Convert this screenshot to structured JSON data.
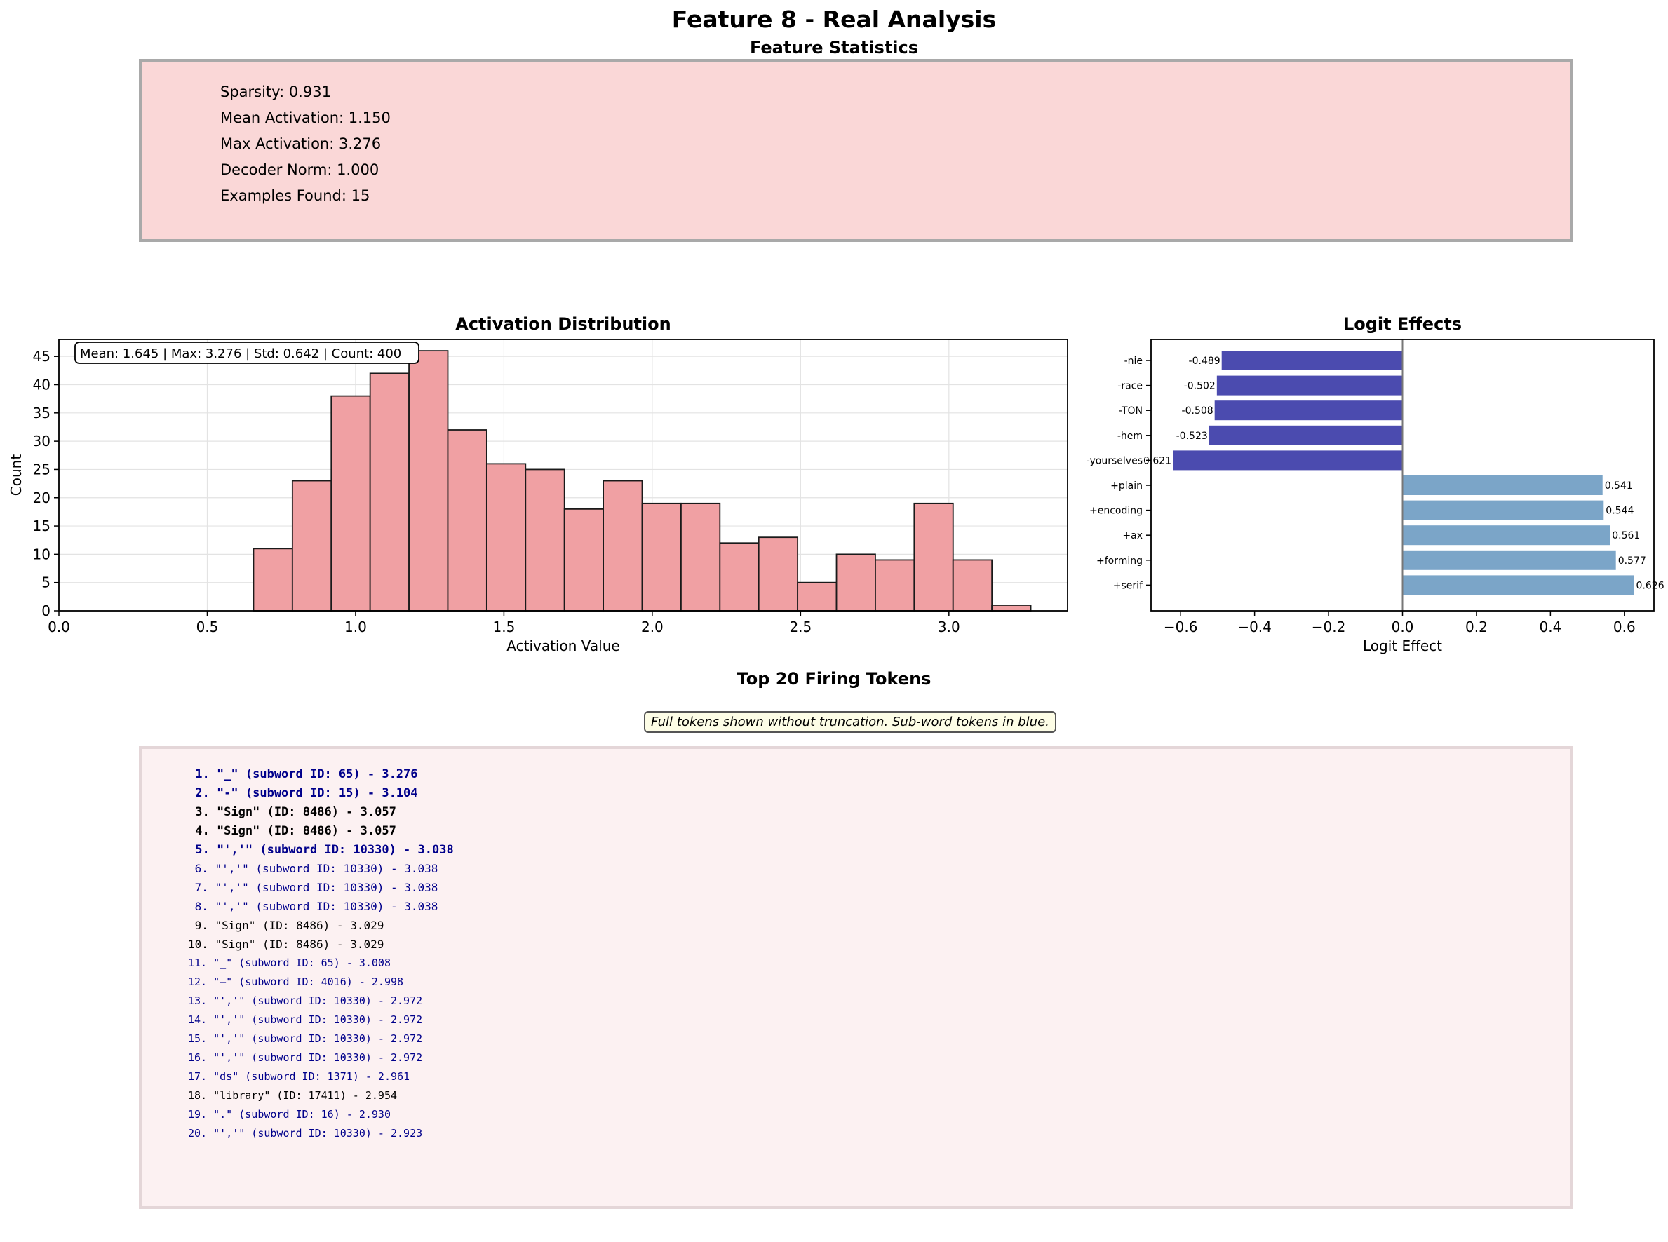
{
  "title": "Feature 8 - Real Analysis",
  "stats": {
    "heading": "Feature Statistics",
    "lines": [
      "Sparsity: 0.931",
      "Mean Activation: 1.150",
      "Max Activation: 3.276",
      "Decoder Norm: 1.000",
      "Examples Found: 15"
    ]
  },
  "tokens": {
    "heading": "Top 20 Firing Tokens",
    "note": "Full tokens shown without truncation. Sub-word tokens in blue.",
    "items": [
      {
        "text": "1. \"_\" (subword ID: 65) - 3.276",
        "subword": true
      },
      {
        "text": "2. \"-\" (subword ID: 15) - 3.104",
        "subword": true
      },
      {
        "text": "3. \"Sign\" (ID: 8486) - 3.057",
        "subword": false
      },
      {
        "text": "4. \"Sign\" (ID: 8486) - 3.057",
        "subword": false
      },
      {
        "text": "5. \"','\" (subword ID: 10330) - 3.038",
        "subword": true
      },
      {
        "text": "6. \"','\" (subword ID: 10330) - 3.038",
        "subword": true
      },
      {
        "text": "7. \"','\" (subword ID: 10330) - 3.038",
        "subword": true
      },
      {
        "text": "8. \"','\" (subword ID: 10330) - 3.038",
        "subword": true
      },
      {
        "text": "9. \"Sign\" (ID: 8486) - 3.029",
        "subword": false
      },
      {
        "text": "10. \"Sign\" (ID: 8486) - 3.029",
        "subword": false
      },
      {
        "text": "11. \"_\" (subword ID: 65) - 3.008",
        "subword": true
      },
      {
        "text": "12. \"—\" (subword ID: 4016) - 2.998",
        "subword": true
      },
      {
        "text": "13. \"','\" (subword ID: 10330) - 2.972",
        "subword": true
      },
      {
        "text": "14. \"','\" (subword ID: 10330) - 2.972",
        "subword": true
      },
      {
        "text": "15. \"','\" (subword ID: 10330) - 2.972",
        "subword": true
      },
      {
        "text": "16. \"','\" (subword ID: 10330) - 2.972",
        "subword": true
      },
      {
        "text": "17. \"ds\" (subword ID: 1371) - 2.961",
        "subword": true
      },
      {
        "text": "18. \"library\" (ID: 17411) - 2.954",
        "subword": false
      },
      {
        "text": "19. \".\" (subword ID: 16) - 2.930",
        "subword": true
      },
      {
        "text": "20. \"','\" (subword ID: 10330) - 2.923",
        "subword": true
      }
    ],
    "colors": {
      "subword": "#00008b",
      "word": "#000000"
    }
  },
  "chart_data": [
    {
      "type": "bar",
      "subtype": "histogram",
      "title": "Activation Distribution",
      "xlabel": "Activation Value",
      "ylabel": "Count",
      "xlim": [
        0.0,
        3.4
      ],
      "ylim": [
        0,
        48
      ],
      "xticks": [
        "0.0",
        "0.5",
        "1.0",
        "1.5",
        "2.0",
        "2.5",
        "3.0"
      ],
      "yticks": [
        "0",
        "5",
        "10",
        "15",
        "20",
        "25",
        "30",
        "35",
        "40",
        "45"
      ],
      "bin_start": 0.656,
      "bin_width": 0.131,
      "values": [
        11,
        23,
        38,
        42,
        46,
        32,
        26,
        25,
        18,
        23,
        19,
        19,
        12,
        13,
        5,
        10,
        9,
        19,
        9,
        1
      ],
      "color": "#f0a0a3",
      "annotation": "Mean: 1.645 | Max: 3.276 | Std: 0.642 | Count: 400",
      "grid": true
    },
    {
      "type": "bar",
      "orientation": "horizontal",
      "title": "Logit Effects",
      "xlabel": "Logit Effect",
      "xlim": [
        -0.68,
        0.68
      ],
      "xticks": [
        "−0.6",
        "−0.4",
        "−0.2",
        "0.0",
        "0.2",
        "0.4",
        "0.6"
      ],
      "categories": [
        "-nie",
        "-race",
        "-TON",
        "-hem",
        "-yourselves",
        "+plain",
        "+encoding",
        "+ax",
        "+forming",
        "+serif"
      ],
      "values": [
        -0.489,
        -0.502,
        -0.508,
        -0.523,
        -0.621,
        0.541,
        0.544,
        0.561,
        0.577,
        0.626
      ],
      "labels": [
        "-0.489",
        "-0.502",
        "-0.508",
        "-0.523",
        "-0.621",
        "0.541",
        "0.544",
        "0.561",
        "0.577",
        "0.626"
      ],
      "neg_color": "#4b4baf",
      "pos_color": "#7ba5c8"
    }
  ]
}
